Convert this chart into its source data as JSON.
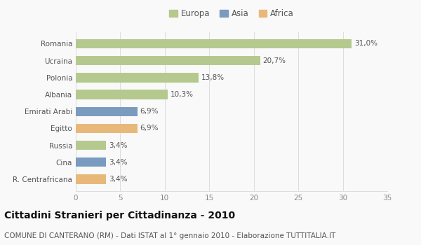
{
  "categories": [
    "Romania",
    "Ucraina",
    "Polonia",
    "Albania",
    "Emirati Arabi",
    "Egitto",
    "Russia",
    "Cina",
    "R. Centrafricana"
  ],
  "values": [
    31.0,
    20.7,
    13.8,
    10.3,
    6.9,
    6.9,
    3.4,
    3.4,
    3.4
  ],
  "labels": [
    "31,0%",
    "20,7%",
    "13,8%",
    "10,3%",
    "6,9%",
    "6,9%",
    "3,4%",
    "3,4%",
    "3,4%"
  ],
  "continents": [
    "Europa",
    "Europa",
    "Europa",
    "Europa",
    "Asia",
    "Africa",
    "Europa",
    "Asia",
    "Africa"
  ],
  "colors": {
    "Europa": "#b5c98e",
    "Asia": "#7a9bbf",
    "Africa": "#e8b87a"
  },
  "legend_entries": [
    "Europa",
    "Asia",
    "Africa"
  ],
  "xlim": [
    0,
    35
  ],
  "xticks": [
    0,
    5,
    10,
    15,
    20,
    25,
    30,
    35
  ],
  "title": "Cittadini Stranieri per Cittadinanza - 2010",
  "subtitle": "COMUNE DI CANTERANO (RM) - Dati ISTAT al 1° gennaio 2010 - Elaborazione TUTTITALIA.IT",
  "title_fontsize": 10,
  "subtitle_fontsize": 7.5,
  "bar_height": 0.55,
  "label_fontsize": 7.5,
  "background_color": "#f9f9f9",
  "grid_color": "#dddddd"
}
